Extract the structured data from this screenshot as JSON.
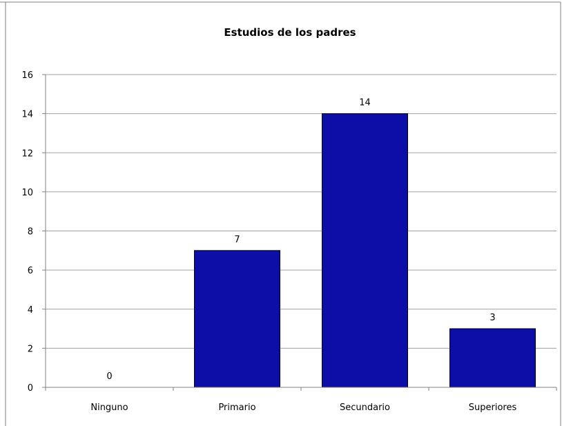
{
  "chart_data": {
    "type": "bar",
    "title": "Estudios de los padres",
    "xlabel": "",
    "ylabel": "",
    "categories": [
      "Ninguno",
      "Primario",
      "Secundario",
      "Superiores"
    ],
    "values": [
      0,
      7,
      14,
      3
    ],
    "ylim": [
      0,
      16
    ],
    "yticks": [
      0,
      2,
      4,
      6,
      8,
      10,
      12,
      14,
      16
    ],
    "grid": true,
    "legend": "none",
    "data_labels": true,
    "bar_color": "#0d0da8",
    "bar_edge_color": "#000000",
    "grid_color": "#a0a0a0",
    "frame_color": "#808080"
  }
}
